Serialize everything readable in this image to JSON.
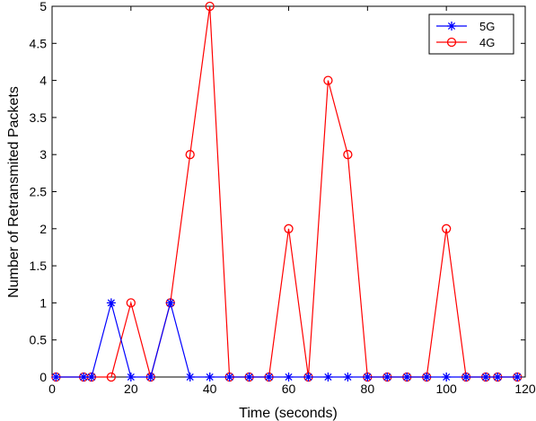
{
  "chart_data": {
    "type": "line",
    "xlabel": "Time (seconds)",
    "ylabel": "Number of Retransmited Packets",
    "xlim": [
      0,
      120
    ],
    "ylim": [
      0,
      5
    ],
    "xticks": [
      0,
      20,
      40,
      60,
      80,
      100,
      120
    ],
    "yticks": [
      0,
      0.5,
      1,
      1.5,
      2,
      2.5,
      3,
      3.5,
      4,
      4.5,
      5
    ],
    "xtick_labels": [
      "0",
      "20",
      "40",
      "60",
      "80",
      "100",
      "120"
    ],
    "ytick_labels": [
      "0",
      "0.5",
      "1",
      "1.5",
      "2",
      "2.5",
      "3",
      "3.5",
      "4",
      "4.5",
      "5"
    ],
    "grid": false,
    "legend_position": "top-right",
    "series": [
      {
        "name": "5G",
        "color": "#0000ff",
        "marker": "asterisk",
        "x": [
          1,
          8,
          10,
          15,
          20,
          25,
          30,
          35,
          40,
          45,
          50,
          55,
          60,
          65,
          70,
          75,
          80,
          85,
          90,
          95,
          100,
          105,
          110,
          113,
          118
        ],
        "y": [
          0,
          0,
          0,
          1,
          0,
          0,
          1,
          0,
          0,
          0,
          0,
          0,
          0,
          0,
          0,
          0,
          0,
          0,
          0,
          0,
          0,
          0,
          0,
          0,
          0
        ]
      },
      {
        "name": "4G",
        "color": "#ff0000",
        "marker": "circle",
        "x": [
          1,
          8,
          10,
          15,
          20,
          25,
          30,
          35,
          40,
          45,
          50,
          55,
          60,
          65,
          70,
          75,
          80,
          85,
          90,
          95,
          100,
          105,
          110,
          113,
          118
        ],
        "y": [
          0,
          0,
          0,
          0,
          1,
          0,
          1,
          3,
          5,
          0,
          0,
          0,
          2,
          0,
          4,
          3,
          0,
          0,
          0,
          0,
          2,
          0,
          0,
          0,
          0
        ]
      }
    ]
  }
}
